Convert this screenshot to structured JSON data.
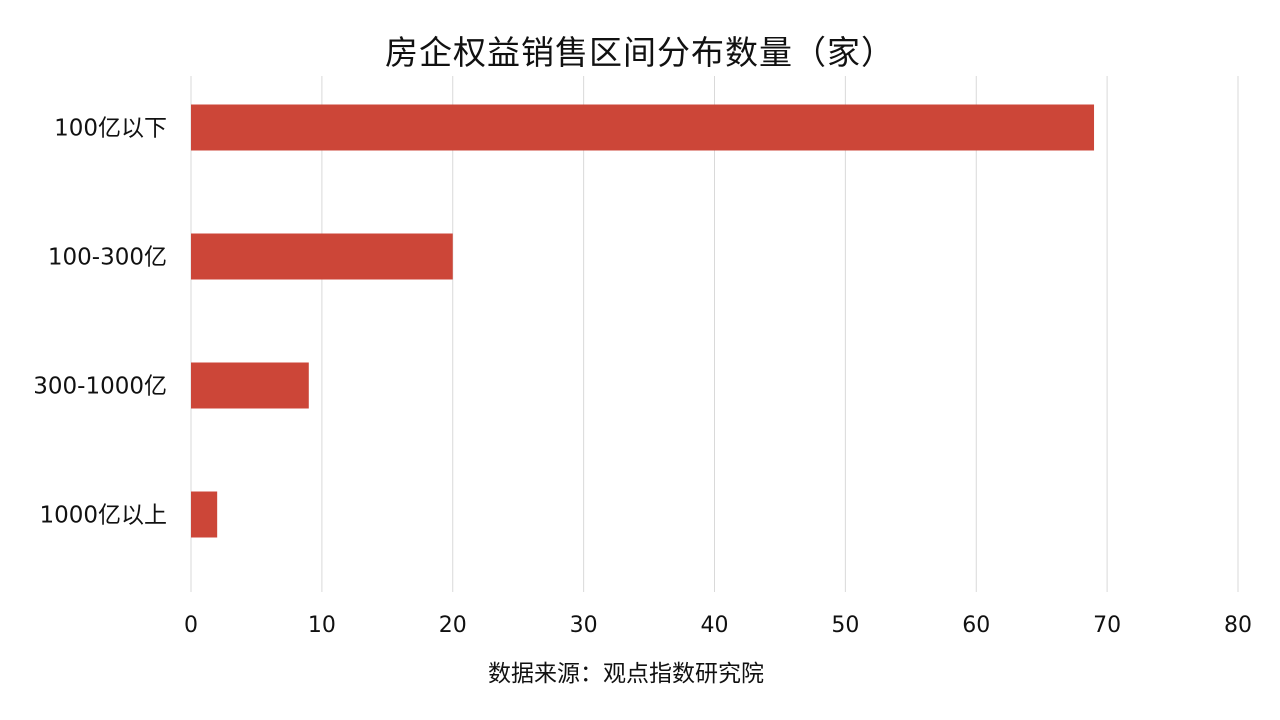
{
  "chart_data": {
    "type": "bar",
    "orientation": "horizontal",
    "title": "房企权益销售区间分布数量（家）",
    "source": "数据来源：观点指数研究院",
    "categories": [
      "100亿以下",
      "100-300亿",
      "300-1000亿",
      "1000亿以上"
    ],
    "series": [
      {
        "values": [
          69,
          20,
          9,
          2
        ]
      }
    ],
    "xlim": [
      0,
      80
    ],
    "xticks": [
      0,
      10,
      20,
      30,
      40,
      50,
      60,
      70,
      80
    ],
    "grid": "vertical",
    "legend": "none",
    "bar_color": "#cc4638",
    "grid_color": "#d9d9d9"
  }
}
